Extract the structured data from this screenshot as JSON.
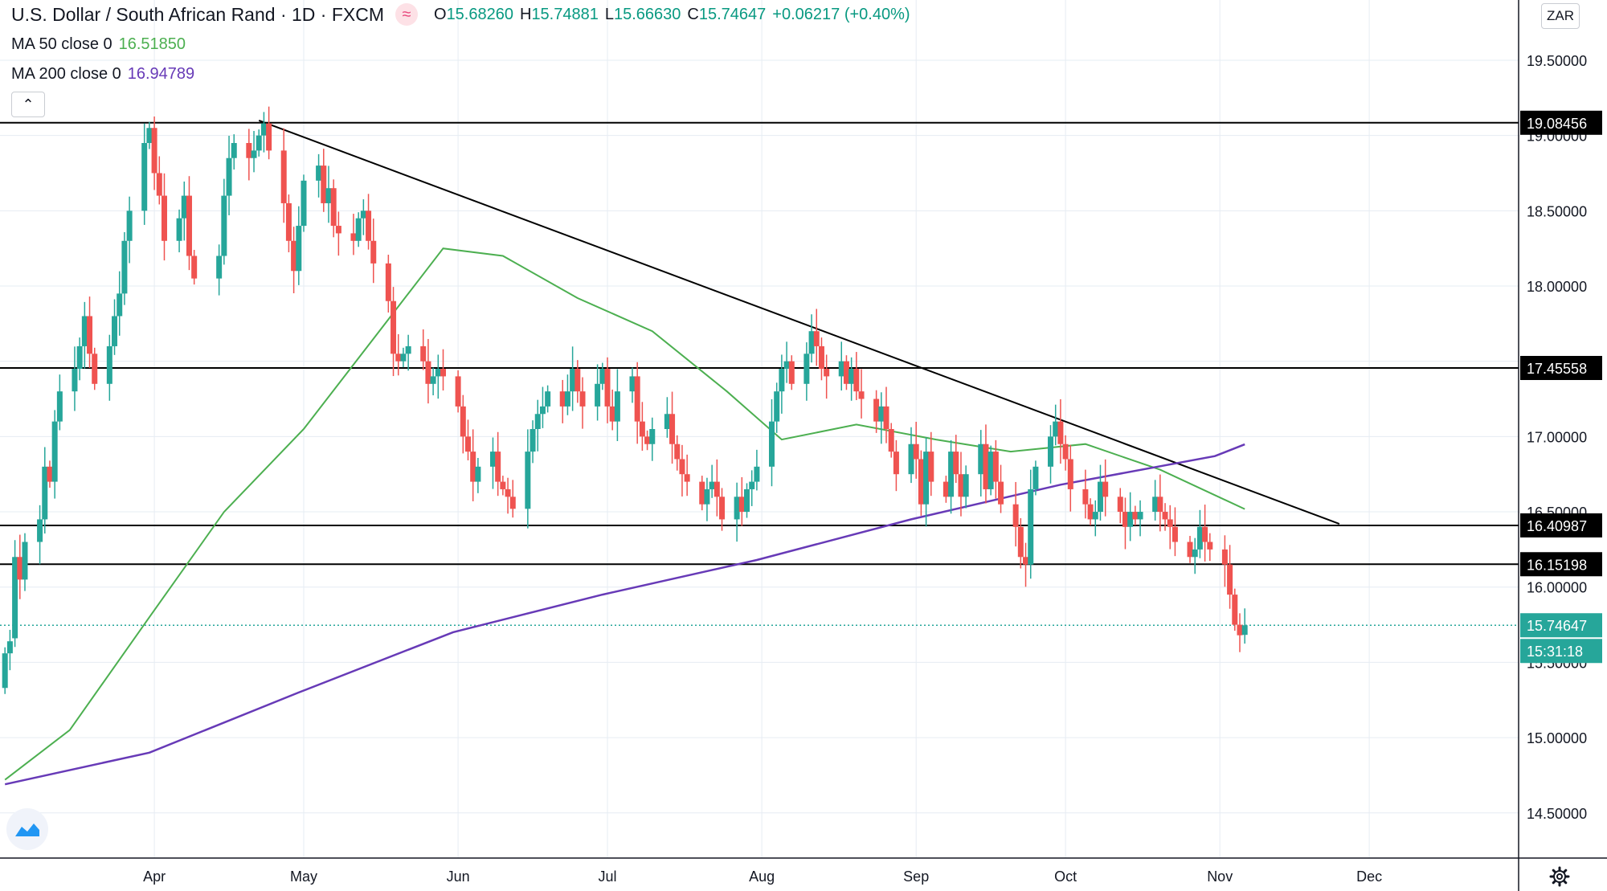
{
  "header": {
    "title": "U.S. Dollar / South African Rand · 1D · FXCM",
    "badge_glyph": "≈",
    "ohlc": {
      "o_label": "O",
      "o": "15.68260",
      "h_label": "H",
      "h": "15.74881",
      "l_label": "L",
      "l": "15.66630",
      "c_label": "C",
      "c": "15.74647",
      "change": "+0.06217 (+0.40%)"
    },
    "ma50_label": "MA 50 close 0",
    "ma50_value": "16.51850",
    "ma200_label": "MA 200 close 0",
    "ma200_value": "16.94789"
  },
  "controls": {
    "collapse_glyph": "⌃",
    "currency": "ZAR",
    "settings_icon": "gear-icon",
    "logo_icon": "tradingview-logo-icon"
  },
  "colors": {
    "up": "#26a69a",
    "down": "#ef5350",
    "ma50": "#4caf50",
    "ma200": "#673ab7",
    "line": "#000000",
    "grid": "#e6ecf3",
    "price": "#26a69a"
  },
  "chart_data": {
    "type": "candlestick",
    "symbol": "USDZAR",
    "interval": "1D",
    "ylim": [
      14.2,
      19.9
    ],
    "y_ticks": [
      "19.50000",
      "19.00000",
      "18.50000",
      "18.00000",
      "17.50000",
      "17.00000",
      "16.50000",
      "16.00000",
      "15.50000",
      "15.00000",
      "14.50000"
    ],
    "x_ticks": [
      "Apr",
      "May",
      "Jun",
      "Jul",
      "Aug",
      "Sep",
      "Oct",
      "Nov",
      "Dec"
    ],
    "x_tick_dates": [
      "2020-04-01",
      "2020-05-01",
      "2020-06-01",
      "2020-07-01",
      "2020-08-01",
      "2020-09-01",
      "2020-10-01",
      "2020-11-01",
      "2020-12-01"
    ],
    "x_range": [
      "2020-03-01",
      "2020-12-31"
    ],
    "last_date": "2020-11-06",
    "horizontal_levels": [
      {
        "value": 19.08456,
        "label": "19.08456"
      },
      {
        "value": 17.45558,
        "label": "17.45558"
      },
      {
        "value": 16.40987,
        "label": "16.40987"
      },
      {
        "value": 16.15198,
        "label": "16.15198"
      }
    ],
    "trend_line": {
      "start": [
        "2020-04-22",
        19.1
      ],
      "end": [
        "2020-11-25",
        16.42
      ]
    },
    "current_price": {
      "value": 15.74647,
      "label": "15.74647",
      "countdown": "15:31:18"
    },
    "ma50_path": [
      [
        "2020-03-02",
        14.72
      ],
      [
        "2020-03-15",
        15.05
      ],
      [
        "2020-03-31",
        15.8
      ],
      [
        "2020-04-15",
        16.5
      ],
      [
        "2020-05-01",
        17.05
      ],
      [
        "2020-05-15",
        17.65
      ],
      [
        "2020-05-29",
        18.25
      ],
      [
        "2020-06-10",
        18.2
      ],
      [
        "2020-06-25",
        17.92
      ],
      [
        "2020-07-10",
        17.7
      ],
      [
        "2020-07-25",
        17.3
      ],
      [
        "2020-08-05",
        16.98
      ],
      [
        "2020-08-20",
        17.08
      ],
      [
        "2020-09-05",
        16.98
      ],
      [
        "2020-09-20",
        16.9
      ],
      [
        "2020-10-05",
        16.95
      ],
      [
        "2020-10-20",
        16.78
      ],
      [
        "2020-11-06",
        16.5185
      ]
    ],
    "ma200_path": [
      [
        "2020-03-02",
        14.69
      ],
      [
        "2020-03-31",
        14.9
      ],
      [
        "2020-04-30",
        15.3
      ],
      [
        "2020-05-31",
        15.7
      ],
      [
        "2020-06-30",
        15.95
      ],
      [
        "2020-07-31",
        16.18
      ],
      [
        "2020-08-31",
        16.45
      ],
      [
        "2020-09-30",
        16.68
      ],
      [
        "2020-10-31",
        16.87
      ],
      [
        "2020-11-06",
        16.94789
      ]
    ],
    "ohlc_series": [
      [
        "2020-03-02",
        15.33,
        15.56
      ],
      [
        "2020-03-03",
        15.56,
        15.64
      ],
      [
        "2020-03-04",
        15.66,
        16.2
      ],
      [
        "2020-03-05",
        16.2,
        16.05
      ],
      [
        "2020-03-06",
        16.05,
        16.3
      ],
      [
        "2020-03-09",
        16.3,
        16.45
      ],
      [
        "2020-03-10",
        16.45,
        16.8
      ],
      [
        "2020-03-11",
        16.8,
        16.7
      ],
      [
        "2020-03-12",
        16.7,
        17.1
      ],
      [
        "2020-03-13",
        17.1,
        17.3
      ],
      [
        "2020-03-16",
        17.3,
        17.45
      ],
      [
        "2020-03-17",
        17.45,
        17.6
      ],
      [
        "2020-03-18",
        17.6,
        17.8
      ],
      [
        "2020-03-19",
        17.8,
        17.55
      ],
      [
        "2020-03-20",
        17.55,
        17.35
      ],
      [
        "2020-03-23",
        17.35,
        17.6
      ],
      [
        "2020-03-24",
        17.6,
        17.8
      ],
      [
        "2020-03-25",
        17.8,
        17.95
      ],
      [
        "2020-03-26",
        17.95,
        18.3
      ],
      [
        "2020-03-27",
        18.3,
        18.5
      ],
      [
        "2020-03-30",
        18.5,
        18.95
      ],
      [
        "2020-03-31",
        18.95,
        19.05
      ],
      [
        "2020-04-01",
        19.05,
        18.75
      ],
      [
        "2020-04-02",
        18.75,
        18.6
      ],
      [
        "2020-04-03",
        18.6,
        18.3
      ],
      [
        "2020-04-06",
        18.3,
        18.45
      ],
      [
        "2020-04-07",
        18.45,
        18.6
      ],
      [
        "2020-04-08",
        18.6,
        18.2
      ],
      [
        "2020-04-09",
        18.2,
        18.05
      ],
      [
        "2020-04-14",
        18.05,
        18.2
      ],
      [
        "2020-04-15",
        18.2,
        18.6
      ],
      [
        "2020-04-16",
        18.6,
        18.85
      ],
      [
        "2020-04-17",
        18.85,
        18.95
      ],
      [
        "2020-04-20",
        18.95,
        18.85
      ],
      [
        "2020-04-21",
        18.85,
        18.9
      ],
      [
        "2020-04-22",
        18.9,
        19.0
      ],
      [
        "2020-04-23",
        19.0,
        19.08
      ],
      [
        "2020-04-24",
        19.08,
        18.9
      ],
      [
        "2020-04-27",
        18.9,
        18.55
      ],
      [
        "2020-04-28",
        18.55,
        18.3
      ],
      [
        "2020-04-29",
        18.3,
        18.1
      ],
      [
        "2020-04-30",
        18.1,
        18.4
      ],
      [
        "2020-05-01",
        18.4,
        18.7
      ],
      [
        "2020-05-04",
        18.7,
        18.8
      ],
      [
        "2020-05-05",
        18.8,
        18.55
      ],
      [
        "2020-05-06",
        18.55,
        18.65
      ],
      [
        "2020-05-07",
        18.65,
        18.4
      ],
      [
        "2020-05-08",
        18.4,
        18.35
      ],
      [
        "2020-05-11",
        18.35,
        18.3
      ],
      [
        "2020-05-12",
        18.3,
        18.45
      ],
      [
        "2020-05-13",
        18.45,
        18.5
      ],
      [
        "2020-05-14",
        18.5,
        18.3
      ],
      [
        "2020-05-15",
        18.3,
        18.15
      ],
      [
        "2020-05-18",
        18.15,
        17.9
      ],
      [
        "2020-05-19",
        17.9,
        17.55
      ],
      [
        "2020-05-20",
        17.55,
        17.5
      ],
      [
        "2020-05-21",
        17.5,
        17.55
      ],
      [
        "2020-05-22",
        17.55,
        17.6
      ],
      [
        "2020-05-25",
        17.6,
        17.5
      ],
      [
        "2020-05-26",
        17.5,
        17.35
      ],
      [
        "2020-05-27",
        17.35,
        17.4
      ],
      [
        "2020-05-28",
        17.4,
        17.45
      ],
      [
        "2020-05-29",
        17.45,
        17.4
      ],
      [
        "2020-06-01",
        17.4,
        17.2
      ],
      [
        "2020-06-02",
        17.2,
        17.0
      ],
      [
        "2020-06-03",
        17.0,
        16.9
      ],
      [
        "2020-06-04",
        16.9,
        16.7
      ],
      [
        "2020-06-05",
        16.7,
        16.8
      ],
      [
        "2020-06-08",
        16.8,
        16.9
      ],
      [
        "2020-06-09",
        16.9,
        16.7
      ],
      [
        "2020-06-10",
        16.7,
        16.65
      ],
      [
        "2020-06-11",
        16.65,
        16.6
      ],
      [
        "2020-06-12",
        16.6,
        16.52
      ],
      [
        "2020-06-15",
        16.52,
        16.9
      ],
      [
        "2020-06-16",
        16.9,
        17.05
      ],
      [
        "2020-06-17",
        17.05,
        17.15
      ],
      [
        "2020-06-18",
        17.15,
        17.2
      ],
      [
        "2020-06-19",
        17.2,
        17.3
      ],
      [
        "2020-06-22",
        17.3,
        17.2
      ],
      [
        "2020-06-23",
        17.2,
        17.3
      ],
      [
        "2020-06-24",
        17.3,
        17.45
      ],
      [
        "2020-06-25",
        17.45,
        17.3
      ],
      [
        "2020-06-26",
        17.3,
        17.2
      ],
      [
        "2020-06-29",
        17.2,
        17.35
      ],
      [
        "2020-06-30",
        17.35,
        17.45
      ],
      [
        "2020-07-01",
        17.45,
        17.2
      ],
      [
        "2020-07-02",
        17.2,
        17.1
      ],
      [
        "2020-07-03",
        17.1,
        17.3
      ],
      [
        "2020-07-06",
        17.3,
        17.4
      ],
      [
        "2020-07-07",
        17.4,
        17.1
      ],
      [
        "2020-07-08",
        17.1,
        17.0
      ],
      [
        "2020-07-09",
        17.0,
        16.95
      ],
      [
        "2020-07-10",
        16.95,
        17.05
      ],
      [
        "2020-07-13",
        17.05,
        17.15
      ],
      [
        "2020-07-14",
        17.15,
        16.95
      ],
      [
        "2020-07-15",
        16.95,
        16.85
      ],
      [
        "2020-07-16",
        16.85,
        16.75
      ],
      [
        "2020-07-17",
        16.75,
        16.7
      ],
      [
        "2020-07-20",
        16.7,
        16.55
      ],
      [
        "2020-07-21",
        16.55,
        16.65
      ],
      [
        "2020-07-22",
        16.65,
        16.7
      ],
      [
        "2020-07-23",
        16.7,
        16.6
      ],
      [
        "2020-07-24",
        16.6,
        16.45
      ],
      [
        "2020-07-27",
        16.45,
        16.6
      ],
      [
        "2020-07-28",
        16.6,
        16.5
      ],
      [
        "2020-07-29",
        16.5,
        16.65
      ],
      [
        "2020-07-30",
        16.65,
        16.7
      ],
      [
        "2020-07-31",
        16.7,
        16.8
      ],
      [
        "2020-08-03",
        16.8,
        17.1
      ],
      [
        "2020-08-04",
        17.1,
        17.3
      ],
      [
        "2020-08-05",
        17.3,
        17.45
      ],
      [
        "2020-08-06",
        17.45,
        17.5
      ],
      [
        "2020-08-07",
        17.5,
        17.35
      ],
      [
        "2020-08-10",
        17.35,
        17.55
      ],
      [
        "2020-08-11",
        17.55,
        17.7
      ],
      [
        "2020-08-12",
        17.7,
        17.6
      ],
      [
        "2020-08-13",
        17.6,
        17.45
      ],
      [
        "2020-08-14",
        17.45,
        17.4
      ],
      [
        "2020-08-17",
        17.4,
        17.5
      ],
      [
        "2020-08-18",
        17.5,
        17.35
      ],
      [
        "2020-08-19",
        17.35,
        17.45
      ],
      [
        "2020-08-20",
        17.45,
        17.3
      ],
      [
        "2020-08-21",
        17.3,
        17.25
      ],
      [
        "2020-08-24",
        17.25,
        17.1
      ],
      [
        "2020-08-25",
        17.1,
        17.2
      ],
      [
        "2020-08-26",
        17.2,
        17.05
      ],
      [
        "2020-08-27",
        17.05,
        16.9
      ],
      [
        "2020-08-28",
        16.9,
        16.75
      ],
      [
        "2020-08-31",
        16.75,
        16.95
      ],
      [
        "2020-09-01",
        16.95,
        16.85
      ],
      [
        "2020-09-02",
        16.85,
        16.55
      ],
      [
        "2020-09-03",
        16.55,
        16.9
      ],
      [
        "2020-09-04",
        16.9,
        16.7
      ],
      [
        "2020-09-07",
        16.7,
        16.6
      ],
      [
        "2020-09-08",
        16.6,
        16.9
      ],
      [
        "2020-09-09",
        16.9,
        16.75
      ],
      [
        "2020-09-10",
        16.75,
        16.6
      ],
      [
        "2020-09-11",
        16.6,
        16.75
      ],
      [
        "2020-09-14",
        16.75,
        16.95
      ],
      [
        "2020-09-15",
        16.95,
        16.65
      ],
      [
        "2020-09-16",
        16.65,
        16.9
      ],
      [
        "2020-09-17",
        16.9,
        16.7
      ],
      [
        "2020-09-18",
        16.7,
        16.55
      ],
      [
        "2020-09-21",
        16.55,
        16.4
      ],
      [
        "2020-09-22",
        16.4,
        16.2
      ],
      [
        "2020-09-23",
        16.2,
        16.15
      ],
      [
        "2020-09-24",
        16.15,
        16.65
      ],
      [
        "2020-09-25",
        16.65,
        16.8
      ],
      [
        "2020-09-28",
        16.8,
        17.0
      ],
      [
        "2020-09-29",
        17.0,
        17.1
      ],
      [
        "2020-09-30",
        17.1,
        16.95
      ],
      [
        "2020-10-01",
        16.95,
        16.85
      ],
      [
        "2020-10-02",
        16.85,
        16.65
      ],
      [
        "2020-10-05",
        16.65,
        16.55
      ],
      [
        "2020-10-06",
        16.55,
        16.45
      ],
      [
        "2020-10-07",
        16.45,
        16.5
      ],
      [
        "2020-10-08",
        16.5,
        16.7
      ],
      [
        "2020-10-09",
        16.7,
        16.6
      ],
      [
        "2020-10-12",
        16.6,
        16.5
      ],
      [
        "2020-10-13",
        16.5,
        16.4
      ],
      [
        "2020-10-14",
        16.4,
        16.5
      ],
      [
        "2020-10-15",
        16.5,
        16.45
      ],
      [
        "2020-10-16",
        16.45,
        16.5
      ],
      [
        "2020-10-19",
        16.5,
        16.6
      ],
      [
        "2020-10-20",
        16.6,
        16.5
      ],
      [
        "2020-10-21",
        16.5,
        16.45
      ],
      [
        "2020-10-22",
        16.45,
        16.4
      ],
      [
        "2020-10-23",
        16.4,
        16.3
      ],
      [
        "2020-10-26",
        16.3,
        16.2
      ],
      [
        "2020-10-27",
        16.2,
        16.25
      ],
      [
        "2020-10-28",
        16.25,
        16.4
      ],
      [
        "2020-10-29",
        16.4,
        16.3
      ],
      [
        "2020-10-30",
        16.3,
        16.25
      ],
      [
        "2020-11-02",
        16.25,
        16.15
      ],
      [
        "2020-11-03",
        16.15,
        15.95
      ],
      [
        "2020-11-04",
        15.95,
        15.75
      ],
      [
        "2020-11-05",
        15.75,
        15.68
      ],
      [
        "2020-11-06",
        15.6826,
        15.74647
      ]
    ]
  }
}
